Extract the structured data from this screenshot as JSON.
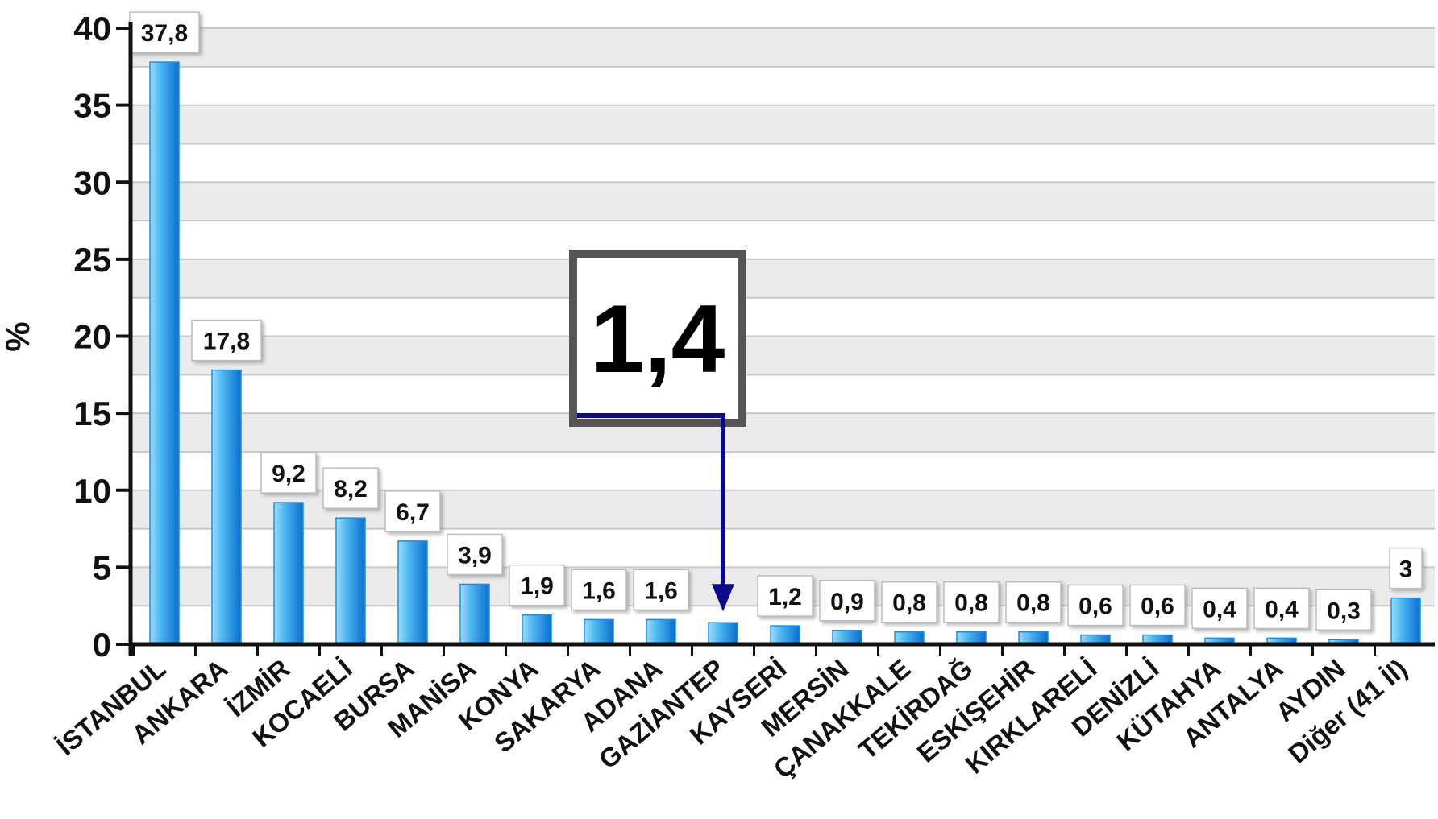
{
  "chart_data": {
    "type": "bar",
    "title": "",
    "xlabel": "",
    "ylabel": "%",
    "ylim": [
      0,
      40
    ],
    "yticks": [
      0,
      5,
      10,
      15,
      20,
      25,
      30,
      35,
      40
    ],
    "grid": true,
    "categories": [
      "İSTANBUL",
      "ANKARA",
      "İZMİR",
      "KOCAELİ",
      "BURSA",
      "MANİSA",
      "KONYA",
      "SAKARYA",
      "ADANA",
      "GAZİANTEP",
      "KAYSERİ",
      "MERSİN",
      "ÇANAKKALE",
      "TEKİRDAĞ",
      "ESKİŞEHİR",
      "KIRKLARELİ",
      "DENİZLİ",
      "KÜTAHYA",
      "ANTALYA",
      "AYDIN",
      "Diğer (41 İl)"
    ],
    "values": [
      37.8,
      17.8,
      9.2,
      8.2,
      6.7,
      3.9,
      1.9,
      1.6,
      1.6,
      1.4,
      1.2,
      0.9,
      0.8,
      0.8,
      0.8,
      0.6,
      0.6,
      0.4,
      0.4,
      0.3,
      3
    ],
    "data_labels": [
      "37,8",
      "17,8",
      "9,2",
      "8,2",
      "6,7",
      "3,9",
      "1,9",
      "1,6",
      "1,6",
      "",
      "1,2",
      "0,9",
      "0,8",
      "0,8",
      "0,8",
      "0,6",
      "0,6",
      "0,4",
      "0,4",
      "0,3",
      "3"
    ],
    "callout": {
      "label": "1,4",
      "category_index": 9
    },
    "colors": {
      "bar_light": "#5cc4f6",
      "bar_dark": "#0a6fd0",
      "bar_border": "#1a8fe0",
      "grid_band": "#ebebeb",
      "grid_line": "#c8c8c8",
      "axis": "#111111",
      "arrow": "#0a0a8c",
      "callout_border": "#555555"
    }
  }
}
